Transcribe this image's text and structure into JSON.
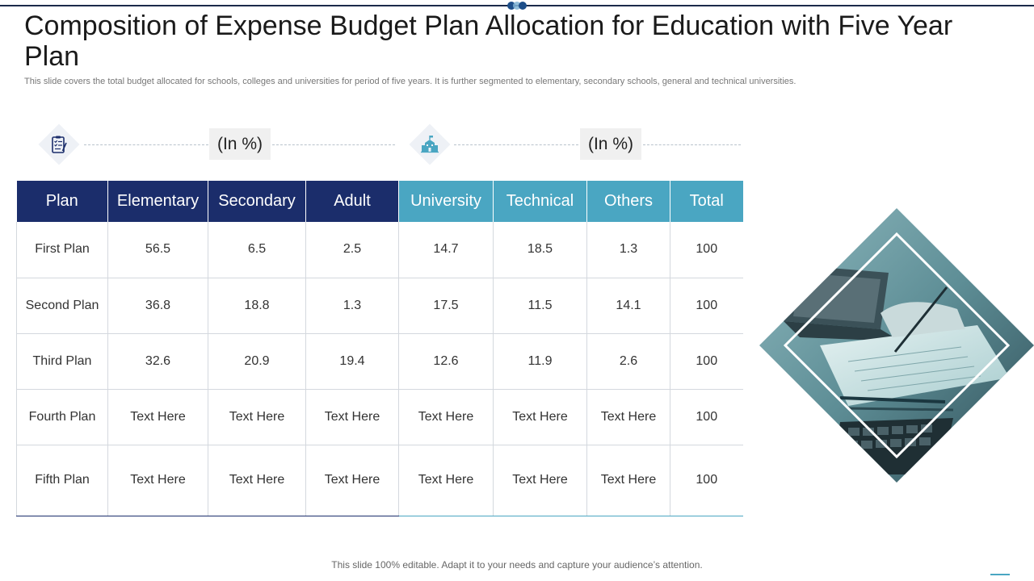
{
  "slide": {
    "title": "Composition of Expense Budget Plan Allocation for Education with Five Year Plan",
    "subtitle": "This slide covers the total budget allocated for schools, colleges and universities for period of five years. It is further segmented to elementary, secondary schools,  general and technical universities.",
    "footer": "This slide 100% editable. Adapt it to your needs and capture your audience’s attention."
  },
  "groups": [
    {
      "icon": "clipboard-checklist-icon",
      "unit_label": "(In %)"
    },
    {
      "icon": "school-building-icon",
      "unit_label": "(In %)"
    }
  ],
  "colors": {
    "navy": "#1b2d6b",
    "teal": "#4aa6c2"
  },
  "table": {
    "headers": [
      "Plan",
      "Elementary",
      "Secondary",
      "Adult",
      "University",
      "Technical",
      "Others",
      "Total"
    ],
    "rows": [
      [
        "First Plan",
        "56.5",
        "6.5",
        "2.5",
        "14.7",
        "18.5",
        "1.3",
        "100"
      ],
      [
        "Second Plan",
        "36.8",
        "18.8",
        "1.3",
        "17.5",
        "11.5",
        "14.1",
        "100"
      ],
      [
        "Third Plan",
        "32.6",
        "20.9",
        "19.4",
        "12.6",
        "11.9",
        "2.6",
        "100"
      ],
      [
        "Fourth Plan",
        "Text Here",
        "Text Here",
        "Text Here",
        "Text Here",
        "Text Here",
        "Text Here",
        "100"
      ],
      [
        "Fifth Plan",
        "Text Here",
        "Text Here",
        "Text Here",
        "Text Here",
        "Text Here",
        "Text Here",
        "100"
      ]
    ]
  },
  "image": {
    "subject": "hands-writing-on-paper-near-laptop-photo"
  }
}
